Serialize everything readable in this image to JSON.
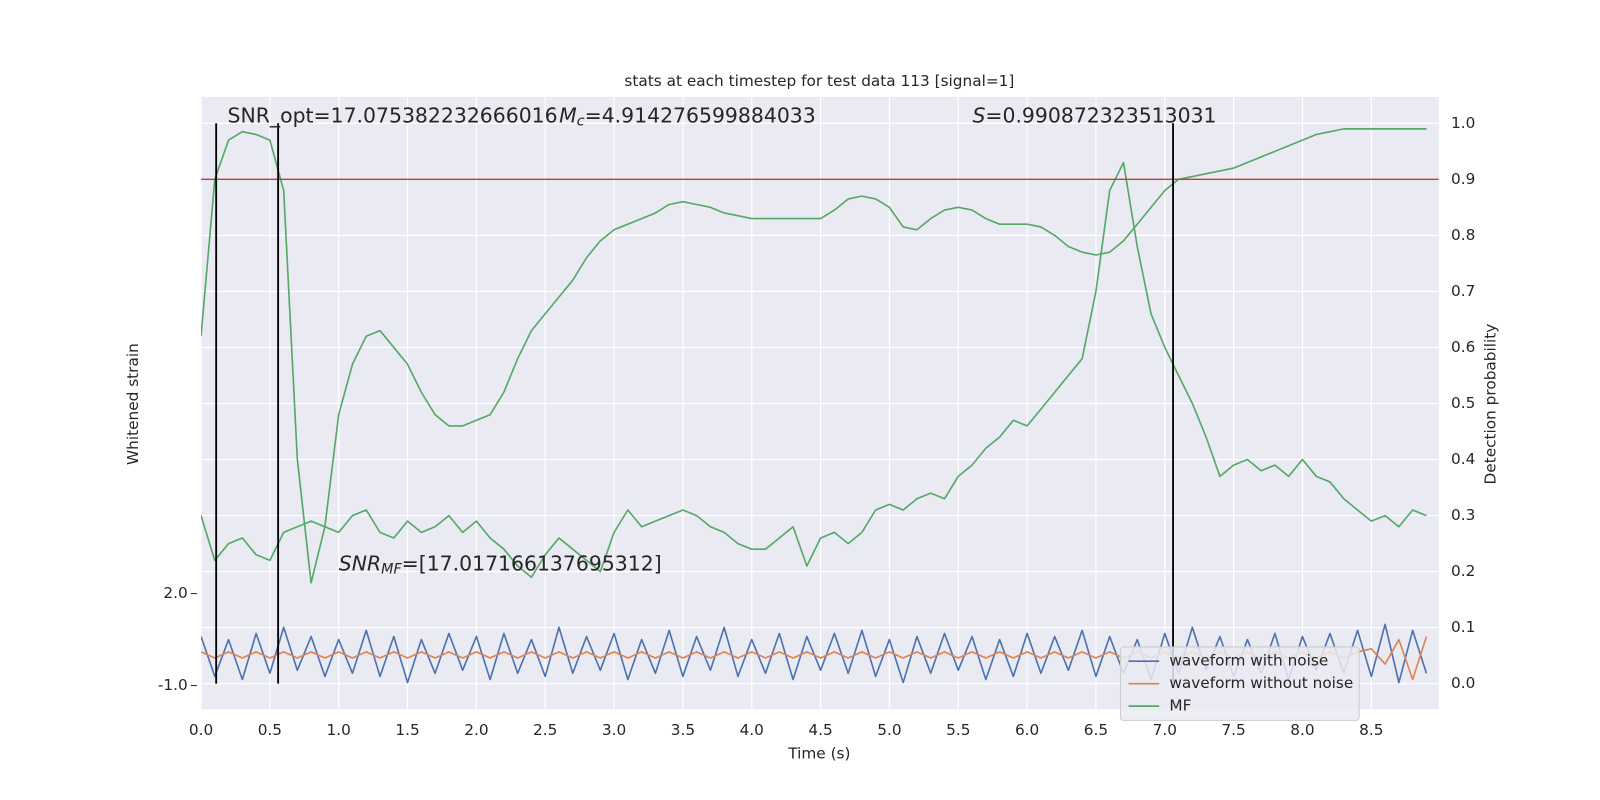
{
  "chart_data": {
    "type": "line",
    "title": "stats at each timestep for test data 113 [signal=1]",
    "xlabel": "Time (s)",
    "ylabel": "Whitened strain",
    "y2label": "Detection probability",
    "grid": true,
    "legend": "lower right",
    "xlim": [
      0,
      8.99
    ],
    "xticks": [
      {
        "value": 0,
        "label": "0.0"
      },
      0.5,
      {
        "value": 1,
        "label": "1.0"
      },
      1.5,
      {
        "value": 2,
        "label": "2.0"
      },
      2.5,
      {
        "value": 3,
        "label": "3.0"
      },
      3.5,
      {
        "value": 4,
        "label": "4.0"
      },
      4.5,
      {
        "value": 5,
        "label": "5.0"
      },
      5.5,
      {
        "value": 6,
        "label": "6.0"
      },
      6.5,
      {
        "value": 7,
        "label": "7.0"
      },
      7.5,
      {
        "value": 8,
        "label": "8.0"
      },
      8.5
    ],
    "ylim": [
      -1.77,
      18.2
    ],
    "yticks": [
      {
        "value": -1,
        "label": "-1.0"
      },
      {
        "value": 2,
        "label": "2.0"
      }
    ],
    "y2lim": [
      -0.0455,
      1.047
    ],
    "y2ticks": [
      {
        "value": 0,
        "label": "0.0"
      },
      0.1,
      0.2,
      0.3,
      0.4,
      0.5,
      0.6,
      0.7,
      0.8,
      0.9,
      {
        "value": 1,
        "label": "1.0"
      }
    ],
    "threshold": {
      "value": 0.9,
      "color": "#c03d3e",
      "axis": "y2"
    },
    "vlines": {
      "x": [
        0.11,
        0.56,
        7.06
      ],
      "from": 0,
      "to": 1,
      "axis": "y2",
      "color": "#000000"
    },
    "annotations": [
      {
        "text": "SNR_opt=17.075382232666016"
      },
      {
        "symbol": "M",
        "subscript": "c",
        "text": "=4.914276599884033"
      },
      {
        "symbol": "S",
        "text": "=0.990872323513031"
      },
      {
        "symbol": "SNR",
        "subscript": "MF",
        "text": "=[17.017166137695312]"
      }
    ],
    "x": [
      0,
      0.1,
      0.2,
      0.3,
      0.4,
      0.5,
      0.6,
      0.7,
      0.8,
      0.9,
      1,
      1.1,
      1.2,
      1.3,
      1.4,
      1.5,
      1.6,
      1.7,
      1.8,
      1.9,
      2,
      2.1,
      2.2,
      2.3,
      2.4,
      2.5,
      2.6,
      2.7,
      2.8,
      2.9,
      3,
      3.1,
      3.2,
      3.3,
      3.4,
      3.5,
      3.6,
      3.7,
      3.8,
      3.9,
      4,
      4.1,
      4.2,
      4.3,
      4.4,
      4.5,
      4.6,
      4.7,
      4.8,
      4.9,
      5,
      5.1,
      5.2,
      5.3,
      5.4,
      5.5,
      5.6,
      5.7,
      5.8,
      5.9,
      6,
      6.1,
      6.2,
      6.3,
      6.4,
      6.5,
      6.6,
      6.7,
      6.8,
      6.9,
      7,
      7.1,
      7.2,
      7.3,
      7.4,
      7.5,
      7.6,
      7.7,
      7.8,
      7.9,
      8,
      8.1,
      8.2,
      8.3,
      8.4,
      8.5,
      8.6,
      8.7,
      8.8,
      8.9
    ],
    "series": [
      {
        "name": "waveform with noise",
        "color": "#4c72b0",
        "values": [
          0.6,
          -0.7,
          0.5,
          -0.8,
          0.7,
          -0.6,
          0.9,
          -0.5,
          0.6,
          -0.7,
          0.5,
          -0.6,
          0.8,
          -0.7,
          0.6,
          -0.9,
          0.5,
          -0.6,
          0.7,
          -0.5,
          0.6,
          -0.8,
          0.7,
          -0.6,
          0.5,
          -0.7,
          0.9,
          -0.6,
          0.6,
          -0.5,
          0.7,
          -0.8,
          0.5,
          -0.6,
          0.8,
          -0.7,
          0.6,
          -0.5,
          0.9,
          -0.7,
          0.5,
          -0.6,
          0.7,
          -0.8,
          0.6,
          -0.5,
          0.7,
          -0.6,
          0.8,
          -0.7,
          0.5,
          -0.9,
          0.6,
          -0.6,
          0.7,
          -0.5,
          0.6,
          -0.8,
          0.5,
          -0.7,
          0.7,
          -0.6,
          0.6,
          -0.5,
          0.8,
          -0.7,
          0.6,
          -0.6,
          0.5,
          -0.8,
          0.7,
          -0.6,
          0.9,
          -0.5,
          0.6,
          -0.7,
          0.5,
          -0.6,
          0.7,
          -0.8,
          0.6,
          -0.5,
          0.7,
          -0.6,
          0.8,
          -0.7,
          1.0,
          -0.9,
          0.8,
          -0.6
        ]
      },
      {
        "name": "waveform without noise",
        "color": "#dd8452",
        "values": [
          0.1,
          -0.1,
          0.1,
          -0.1,
          0.1,
          -0.1,
          0.1,
          -0.1,
          0.1,
          -0.1,
          0.1,
          -0.1,
          0.1,
          -0.1,
          0.1,
          -0.1,
          0.1,
          -0.1,
          0.1,
          -0.1,
          0.1,
          -0.1,
          0.1,
          -0.1,
          0.1,
          -0.1,
          0.1,
          -0.1,
          0.1,
          -0.1,
          0.1,
          -0.1,
          0.1,
          -0.1,
          0.1,
          -0.1,
          0.1,
          -0.1,
          0.1,
          -0.1,
          0.1,
          -0.1,
          0.1,
          -0.1,
          0.1,
          -0.1,
          0.1,
          -0.1,
          0.1,
          -0.1,
          0.1,
          -0.1,
          0.1,
          -0.1,
          0.1,
          -0.1,
          0.1,
          -0.1,
          0.1,
          -0.1,
          0.1,
          -0.1,
          0.1,
          -0.1,
          0.1,
          -0.1,
          0.1,
          -0.1,
          0.1,
          -0.1,
          0.1,
          -0.1,
          0.1,
          -0.1,
          0.1,
          -0.1,
          0.1,
          -0.1,
          0.1,
          -0.1,
          0.1,
          -0.1,
          0.1,
          -0.1,
          0.1,
          0.2,
          -0.3,
          0.5,
          -0.8,
          0.6
        ]
      },
      {
        "name": "MF",
        "color": "#55a868",
        "axis": "y2",
        "values": [
          0.3,
          0.22,
          0.25,
          0.26,
          0.23,
          0.22,
          0.27,
          0.28,
          0.29,
          0.28,
          0.27,
          0.3,
          0.31,
          0.27,
          0.26,
          0.29,
          0.27,
          0.28,
          0.3,
          0.27,
          0.29,
          0.26,
          0.24,
          0.21,
          0.19,
          0.23,
          0.26,
          0.24,
          0.22,
          0.2,
          0.27,
          0.31,
          0.28,
          0.29,
          0.3,
          0.31,
          0.3,
          0.28,
          0.27,
          0.25,
          0.24,
          0.24,
          0.26,
          0.28,
          0.21,
          0.26,
          0.27,
          0.25,
          0.27,
          0.31,
          0.32,
          0.31,
          0.33,
          0.34,
          0.33,
          0.37,
          0.39,
          0.42,
          0.44,
          0.47,
          0.46,
          0.49,
          0.52,
          0.55,
          0.58,
          0.7,
          0.88,
          0.93,
          0.78,
          0.66,
          0.6,
          0.55,
          0.5,
          0.44,
          0.37,
          0.39,
          0.4,
          0.38,
          0.39,
          0.37,
          0.4,
          0.37,
          0.36,
          0.33,
          0.31,
          0.29,
          0.3,
          0.28,
          0.31,
          0.3
        ]
      },
      {
        "color": "#55a868",
        "axis": "y2",
        "values": [
          0.62,
          0.9,
          0.97,
          0.985,
          0.98,
          0.97,
          0.88,
          0.4,
          0.18,
          0.28,
          0.48,
          0.57,
          0.62,
          0.63,
          0.6,
          0.57,
          0.52,
          0.48,
          0.46,
          0.46,
          0.47,
          0.48,
          0.52,
          0.58,
          0.63,
          0.66,
          0.69,
          0.72,
          0.76,
          0.79,
          0.81,
          0.82,
          0.83,
          0.84,
          0.855,
          0.86,
          0.855,
          0.85,
          0.84,
          0.835,
          0.83,
          0.83,
          0.83,
          0.83,
          0.83,
          0.83,
          0.845,
          0.865,
          0.87,
          0.865,
          0.85,
          0.815,
          0.81,
          0.83,
          0.845,
          0.85,
          0.845,
          0.83,
          0.82,
          0.82,
          0.82,
          0.815,
          0.8,
          0.78,
          0.77,
          0.765,
          0.77,
          0.79,
          0.82,
          0.85,
          0.88,
          0.9,
          0.905,
          0.91,
          0.915,
          0.92,
          0.93,
          0.94,
          0.95,
          0.96,
          0.97,
          0.98,
          0.985,
          0.99,
          0.99,
          0.99,
          0.99,
          0.99,
          0.99,
          0.99
        ]
      }
    ]
  }
}
